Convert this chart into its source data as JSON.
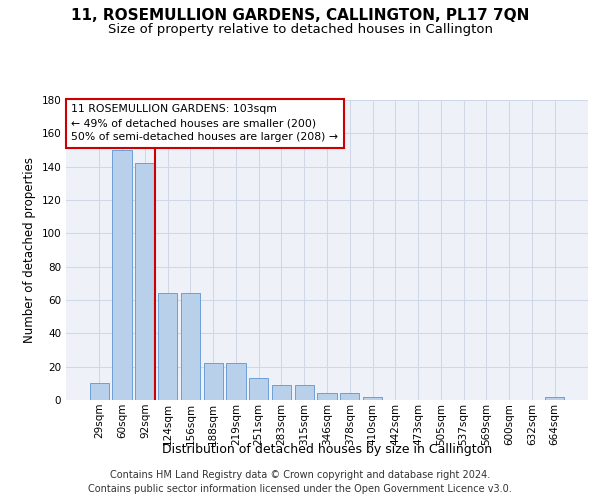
{
  "title": "11, ROSEMULLION GARDENS, CALLINGTON, PL17 7QN",
  "subtitle": "Size of property relative to detached houses in Callington",
  "xlabel": "Distribution of detached houses by size in Callington",
  "ylabel": "Number of detached properties",
  "categories": [
    "29sqm",
    "60sqm",
    "92sqm",
    "124sqm",
    "156sqm",
    "188sqm",
    "219sqm",
    "251sqm",
    "283sqm",
    "315sqm",
    "346sqm",
    "378sqm",
    "410sqm",
    "442sqm",
    "473sqm",
    "505sqm",
    "537sqm",
    "569sqm",
    "600sqm",
    "632sqm",
    "664sqm"
  ],
  "values": [
    10,
    150,
    142,
    64,
    64,
    22,
    22,
    13,
    9,
    9,
    4,
    4,
    2,
    0,
    0,
    0,
    0,
    0,
    0,
    0,
    2
  ],
  "bar_color": "#b8d0ea",
  "bar_edge_color": "#6a9fd8",
  "background_color": "#eef2f8",
  "grid_color": "#d0d8e8",
  "annotation_text_line1": "11 ROSEMULLION GARDENS: 103sqm",
  "annotation_text_line2": "← 49% of detached houses are smaller (200)",
  "annotation_text_line3": "50% of semi-detached houses are larger (208) →",
  "annotation_box_color": "#ffffff",
  "annotation_border_color": "#cc0000",
  "vline_color": "#cc0000",
  "vline_x_index": 2,
  "ylim": [
    0,
    180
  ],
  "yticks": [
    0,
    20,
    40,
    60,
    80,
    100,
    120,
    140,
    160,
    180
  ],
  "title_fontsize": 11,
  "subtitle_fontsize": 9.5,
  "xlabel_fontsize": 9,
  "ylabel_fontsize": 8.5,
  "tick_fontsize": 7.5,
  "footer_fontsize": 7,
  "annotation_fontsize": 7.8,
  "footer_line1": "Contains HM Land Registry data © Crown copyright and database right 2024.",
  "footer_line2": "Contains public sector information licensed under the Open Government Licence v3.0."
}
